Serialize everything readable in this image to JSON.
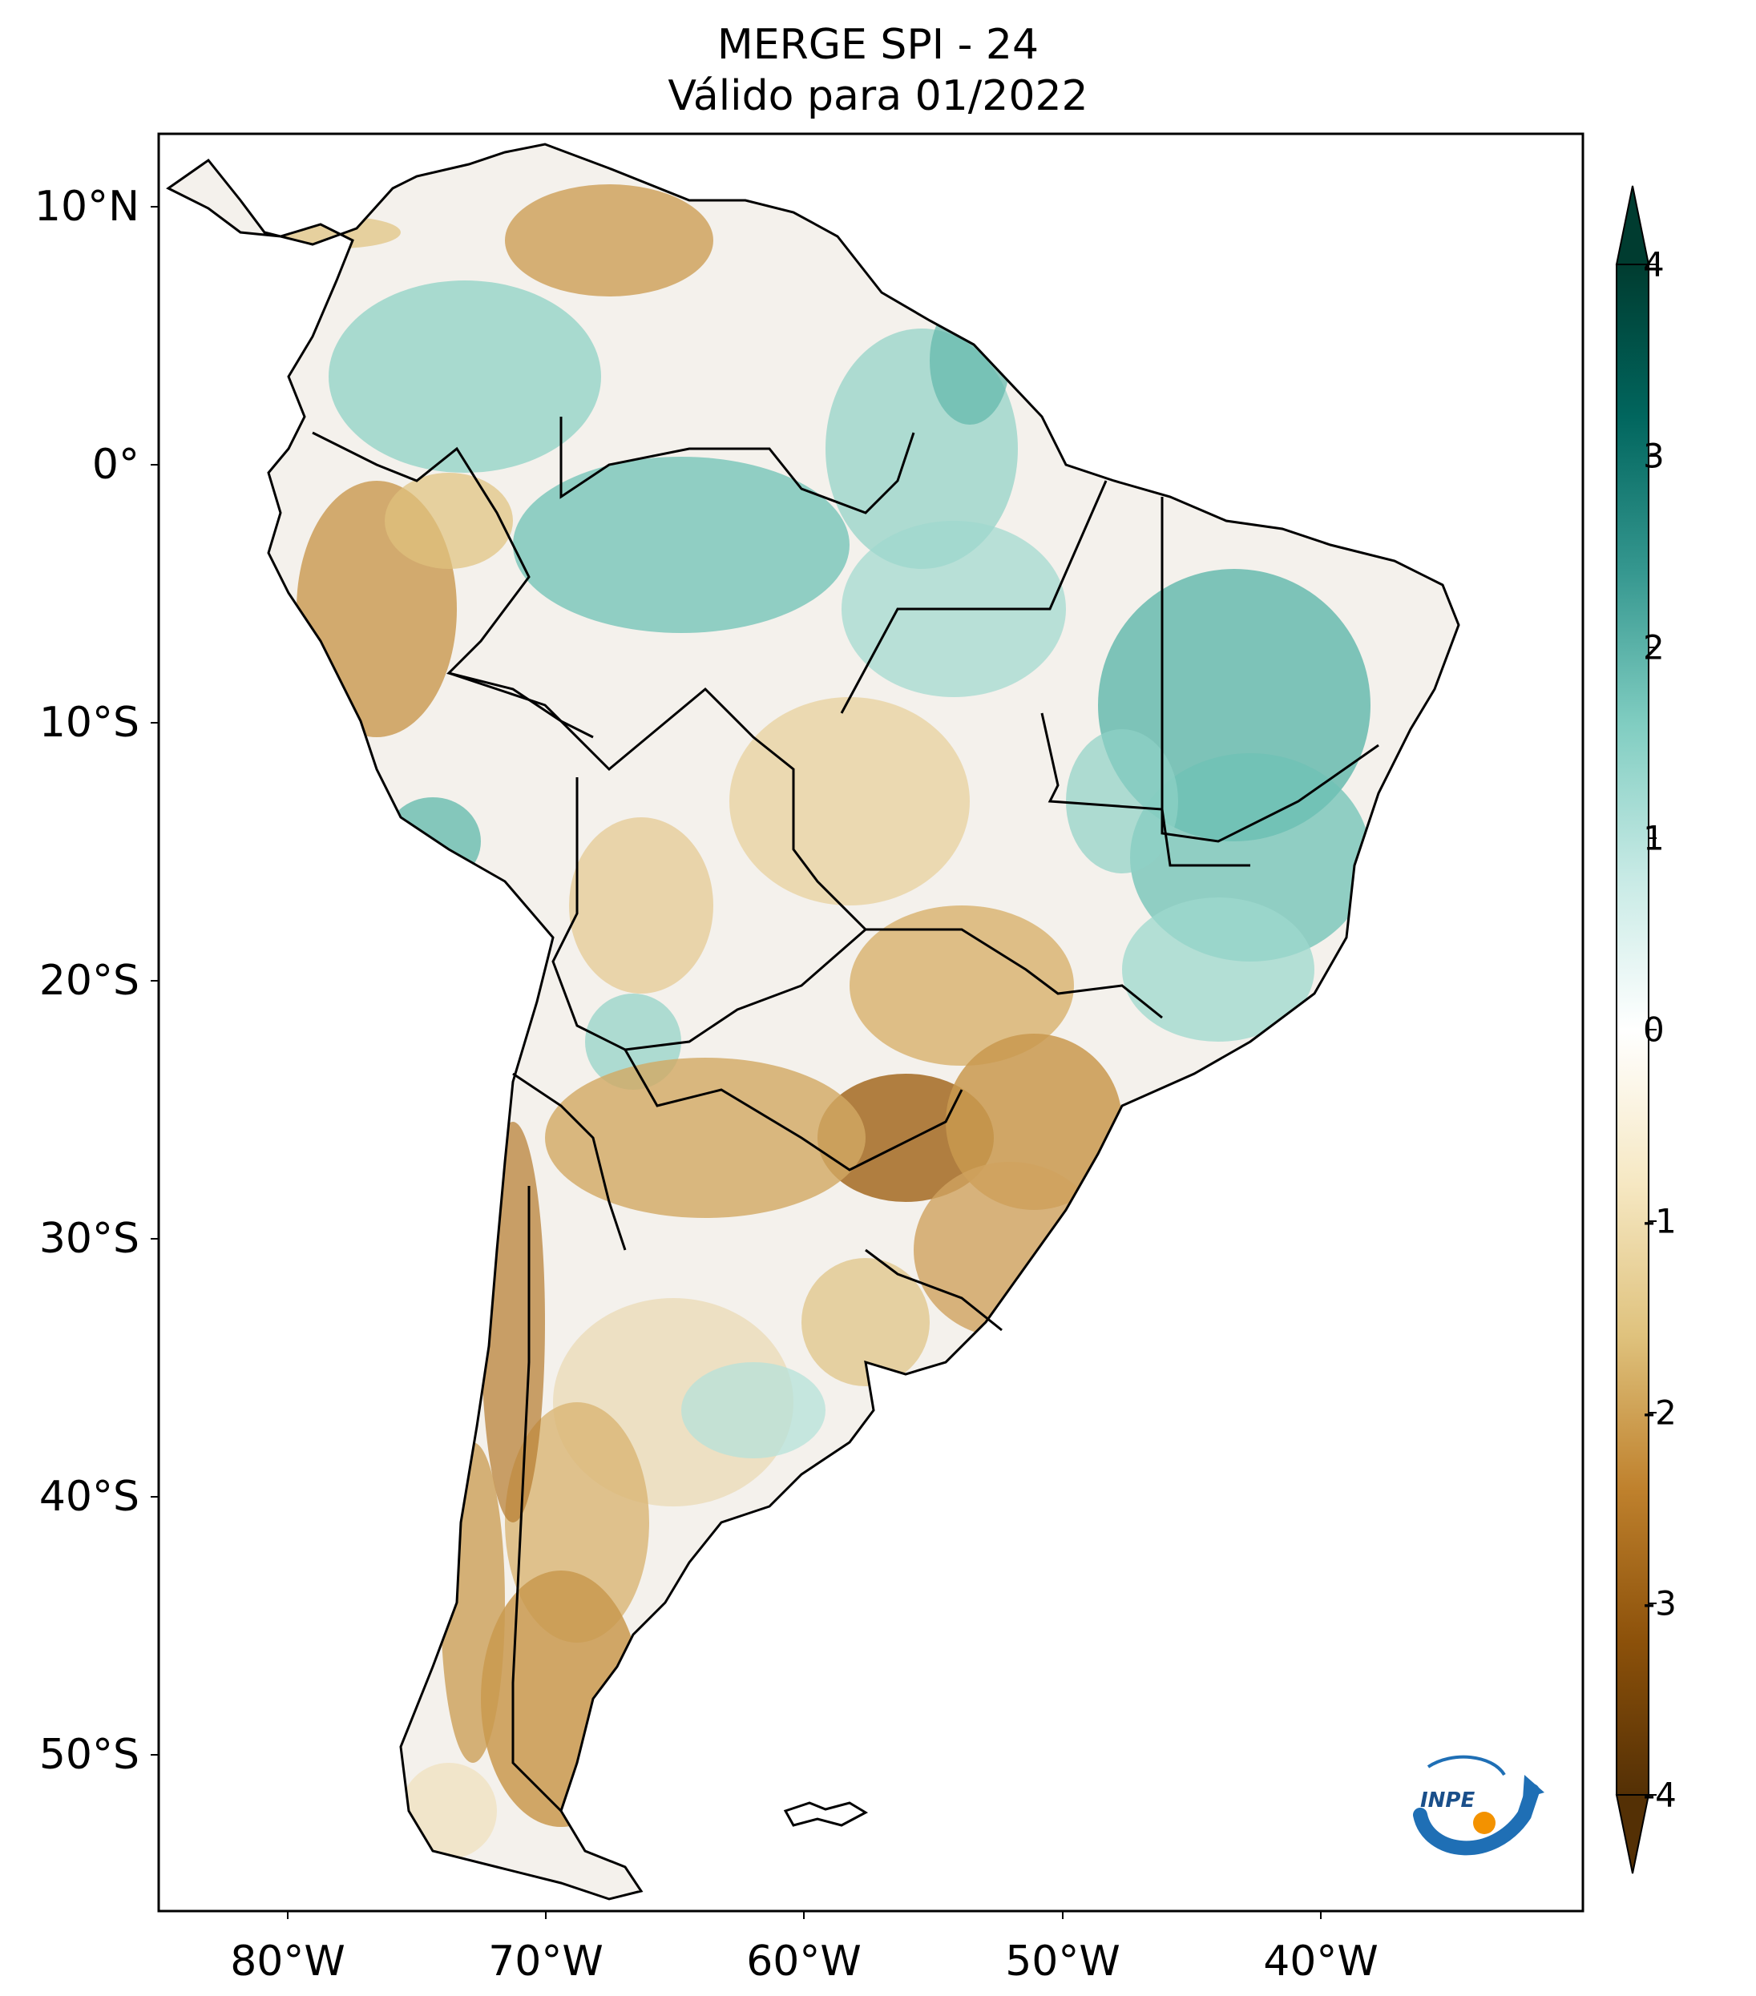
{
  "title": {
    "line1": "MERGE   SPI - 24",
    "line2": "Válido para 01/2022"
  },
  "map": {
    "region": "South America",
    "variable": "SPI-24",
    "lat_labels": [
      "10°N",
      "0°",
      "10°S",
      "20°S",
      "30°S",
      "40°S",
      "50°S"
    ],
    "lat_values": [
      10,
      0,
      -10,
      -20,
      -30,
      -40,
      -50
    ],
    "lon_labels": [
      "80°W",
      "70°W",
      "60°W",
      "50°W",
      "40°W"
    ],
    "lon_values": [
      -80,
      -70,
      -60,
      -50,
      -40
    ],
    "lon_range": [
      -85,
      -30
    ],
    "lat_range": [
      -56,
      13
    ]
  },
  "colorbar": {
    "ticks": [
      "4",
      "3",
      "2",
      "1",
      "0",
      "-1",
      "-2",
      "-3",
      "-4"
    ],
    "tick_values": [
      4,
      3,
      2,
      1,
      0,
      -1,
      -2,
      -3,
      -4
    ],
    "range": [
      -4,
      4
    ],
    "extend": "both",
    "colormap": "BrBG",
    "colors": {
      "wet_extreme": "#003c30",
      "wet_strong": "#01665e",
      "wet": "#35978f",
      "wet_mild": "#80cdc1",
      "wet_light": "#c7eae5",
      "neutral": "#f5f5f5",
      "dry_light": "#f6e8c3",
      "dry_mild": "#dfc27d",
      "dry": "#bf812d",
      "dry_strong": "#8c510a",
      "dry_extreme": "#543005"
    }
  },
  "logo": {
    "text": "INPE"
  }
}
